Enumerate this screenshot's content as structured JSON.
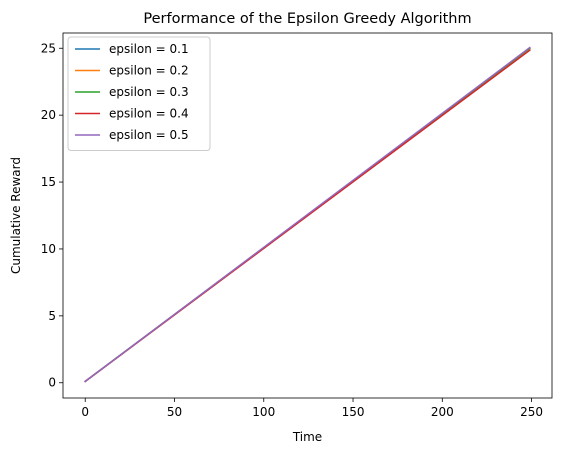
{
  "chart_data": {
    "type": "line",
    "title": "Performance of the Epsilon Greedy Algorithm",
    "xlabel": "Time",
    "ylabel": "Cumulative Reward",
    "xlim": [
      -12.45,
      261.45
    ],
    "ylim": [
      -1.14,
      26.14
    ],
    "xticks": [
      0,
      50,
      100,
      150,
      200,
      250
    ],
    "yticks": [
      0,
      5,
      10,
      15,
      20,
      25
    ],
    "grid": false,
    "legend_position": "upper-left",
    "series": [
      {
        "name": "epsilon = 0.1",
        "color": "#1f77b4",
        "x": [
          0,
          249
        ],
        "y": [
          0.1,
          25.0
        ]
      },
      {
        "name": "epsilon = 0.2",
        "color": "#ff7f0e",
        "x": [
          0,
          249
        ],
        "y": [
          0.1,
          24.95
        ]
      },
      {
        "name": "epsilon = 0.3",
        "color": "#2ca02c",
        "x": [
          0,
          249
        ],
        "y": [
          0.1,
          25.0
        ]
      },
      {
        "name": "epsilon = 0.4",
        "color": "#d62728",
        "x": [
          0,
          249
        ],
        "y": [
          0.1,
          24.85
        ]
      },
      {
        "name": "epsilon = 0.5",
        "color": "#9467bd",
        "x": [
          0,
          249
        ],
        "y": [
          0.1,
          25.05
        ]
      }
    ]
  }
}
